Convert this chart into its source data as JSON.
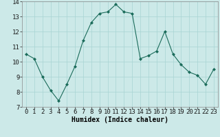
{
  "x": [
    0,
    1,
    2,
    3,
    4,
    5,
    6,
    7,
    8,
    9,
    10,
    11,
    12,
    13,
    14,
    15,
    16,
    17,
    18,
    19,
    20,
    21,
    22,
    23
  ],
  "y": [
    10.5,
    10.2,
    9.0,
    8.1,
    7.4,
    8.5,
    9.7,
    11.4,
    12.6,
    13.2,
    13.3,
    13.8,
    13.3,
    13.2,
    10.2,
    10.4,
    10.7,
    12.0,
    10.5,
    9.8,
    9.3,
    9.1,
    8.5,
    9.5
  ],
  "xlabel": "Humidex (Indice chaleur)",
  "ylim": [
    7,
    14
  ],
  "xlim_min": -0.5,
  "xlim_max": 23.5,
  "yticks": [
    7,
    8,
    9,
    10,
    11,
    12,
    13,
    14
  ],
  "xticks": [
    0,
    1,
    2,
    3,
    4,
    5,
    6,
    7,
    8,
    9,
    10,
    11,
    12,
    13,
    14,
    15,
    16,
    17,
    18,
    19,
    20,
    21,
    22,
    23
  ],
  "line_color": "#1a6b5a",
  "marker_color": "#1a6b5a",
  "bg_color": "#cce9e8",
  "grid_color": "#a8d4d3",
  "title_color": "#000000",
  "label_fontsize": 7,
  "tick_fontsize": 6.5
}
